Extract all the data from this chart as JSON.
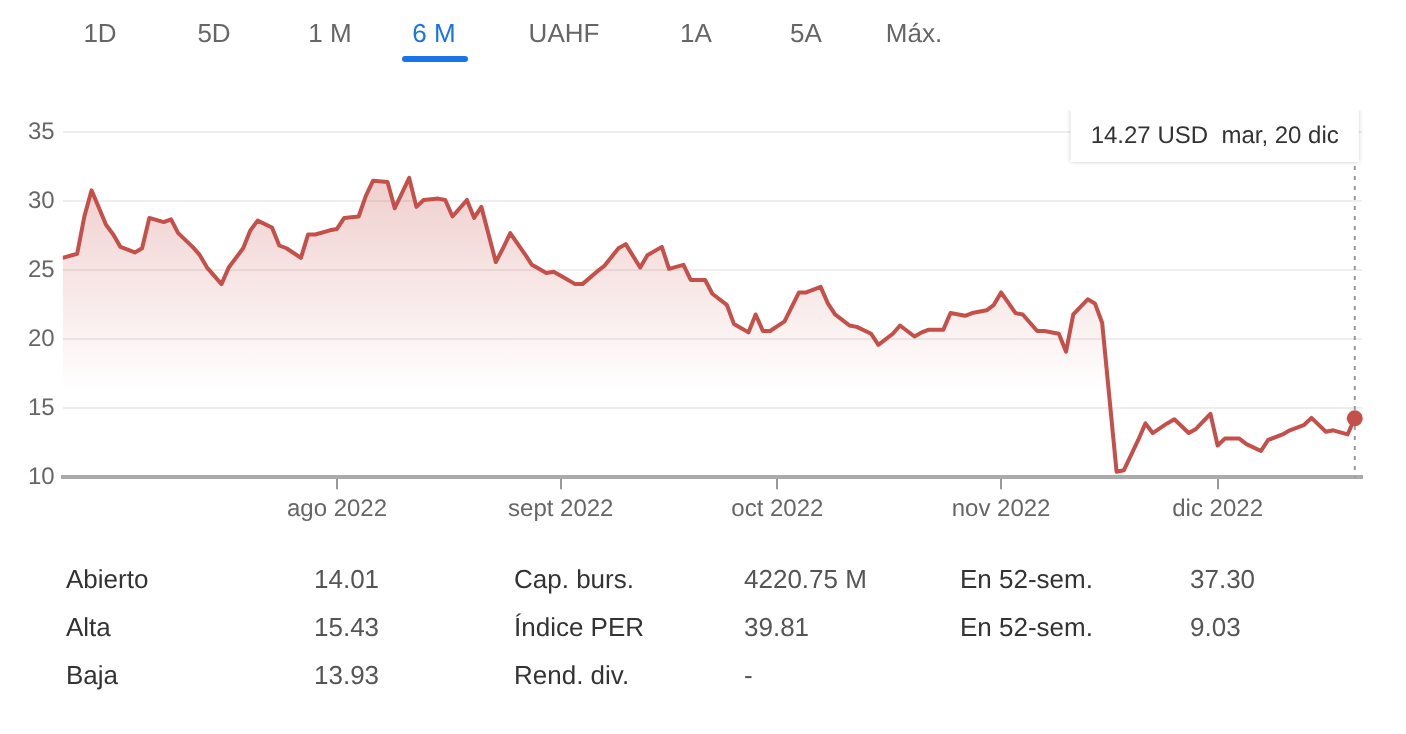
{
  "chart_data": {
    "type": "area",
    "x": [
      "2022-06-24",
      "2022-06-26",
      "2022-06-27",
      "2022-06-28",
      "2022-06-30",
      "2022-07-01",
      "2022-07-02",
      "2022-07-04",
      "2022-07-05",
      "2022-07-06",
      "2022-07-08",
      "2022-07-09",
      "2022-07-10",
      "2022-07-12",
      "2022-07-13",
      "2022-07-14",
      "2022-07-16",
      "2022-07-17",
      "2022-07-19",
      "2022-07-20",
      "2022-07-21",
      "2022-07-23",
      "2022-07-24",
      "2022-07-25",
      "2022-07-27",
      "2022-07-28",
      "2022-07-29",
      "2022-07-31",
      "2022-08-01",
      "2022-08-02",
      "2022-08-04",
      "2022-08-05",
      "2022-08-06",
      "2022-08-08",
      "2022-08-09",
      "2022-08-11",
      "2022-08-12",
      "2022-08-13",
      "2022-08-15",
      "2022-08-16",
      "2022-08-17",
      "2022-08-19",
      "2022-08-20",
      "2022-08-21",
      "2022-08-23",
      "2022-08-24",
      "2022-08-25",
      "2022-08-27",
      "2022-08-28",
      "2022-08-30",
      "2022-08-31",
      "2022-09-01",
      "2022-09-03",
      "2022-09-04",
      "2022-09-06",
      "2022-09-07",
      "2022-09-09",
      "2022-09-10",
      "2022-09-12",
      "2022-09-13",
      "2022-09-15",
      "2022-09-16",
      "2022-09-18",
      "2022-09-19",
      "2022-09-21",
      "2022-09-22",
      "2022-09-24",
      "2022-09-25",
      "2022-09-27",
      "2022-09-28",
      "2022-09-29",
      "2022-09-30",
      "2022-10-02",
      "2022-10-04",
      "2022-10-05",
      "2022-10-07",
      "2022-10-08",
      "2022-10-09",
      "2022-10-11",
      "2022-10-12",
      "2022-10-14",
      "2022-10-15",
      "2022-10-17",
      "2022-10-18",
      "2022-10-20",
      "2022-10-21",
      "2022-10-22",
      "2022-10-24",
      "2022-10-25",
      "2022-10-27",
      "2022-10-28",
      "2022-10-30",
      "2022-10-31",
      "2022-11-01",
      "2022-11-03",
      "2022-11-04",
      "2022-11-06",
      "2022-11-07",
      "2022-11-09",
      "2022-11-10",
      "2022-11-11",
      "2022-11-13",
      "2022-11-14",
      "2022-11-15",
      "2022-11-17",
      "2022-11-18",
      "2022-11-20",
      "2022-11-21",
      "2022-11-22",
      "2022-11-24",
      "2022-11-25",
      "2022-11-27",
      "2022-11-28",
      "2022-11-30",
      "2022-12-01",
      "2022-12-02",
      "2022-12-04",
      "2022-12-05",
      "2022-12-07",
      "2022-12-08",
      "2022-12-10",
      "2022-12-11",
      "2022-12-13",
      "2022-12-14",
      "2022-12-16",
      "2022-12-17",
      "2022-12-19",
      "2022-12-20"
    ],
    "values": [
      25.9,
      26.2,
      28.9,
      30.8,
      28.3,
      27.6,
      26.7,
      26.3,
      26.6,
      28.8,
      28.5,
      28.7,
      27.7,
      26.7,
      26.1,
      25.2,
      24.0,
      25.2,
      26.6,
      27.9,
      28.6,
      28.1,
      26.8,
      26.6,
      25.9,
      27.6,
      27.6,
      27.9,
      28.0,
      28.8,
      28.9,
      30.4,
      31.5,
      31.4,
      29.5,
      31.7,
      29.6,
      30.1,
      30.2,
      30.1,
      28.9,
      30.1,
      28.8,
      29.6,
      25.6,
      26.6,
      27.7,
      26.2,
      25.4,
      24.8,
      24.9,
      24.6,
      24.0,
      24.0,
      24.9,
      25.3,
      26.6,
      26.9,
      25.2,
      26.1,
      26.7,
      25.1,
      25.4,
      24.3,
      24.3,
      23.3,
      22.5,
      21.1,
      20.5,
      21.8,
      20.6,
      20.6,
      21.3,
      23.4,
      23.4,
      23.8,
      22.6,
      21.8,
      21.0,
      20.9,
      20.4,
      19.6,
      20.4,
      21.0,
      20.2,
      20.5,
      20.7,
      20.7,
      21.9,
      21.7,
      21.9,
      22.1,
      22.5,
      23.4,
      21.9,
      21.8,
      20.6,
      20.6,
      20.4,
      19.1,
      21.8,
      22.9,
      22.6,
      21.2,
      10.4,
      10.5,
      12.7,
      13.9,
      13.2,
      13.9,
      14.2,
      13.2,
      13.5,
      14.6,
      12.3,
      12.8,
      12.8,
      12.4,
      11.9,
      12.7,
      13.1,
      13.4,
      13.8,
      14.3,
      13.3,
      13.4,
      13.1,
      14.27
    ],
    "color": "#c5504a",
    "xlim": [
      "2022-06-24",
      "2022-12-21"
    ],
    "xticks": [
      {
        "value": "2022-08-01",
        "label": "ago 2022"
      },
      {
        "value": "2022-09-01",
        "label": "sept 2022"
      },
      {
        "value": "2022-10-01",
        "label": "oct 2022"
      },
      {
        "value": "2022-11-01",
        "label": "nov 2022"
      },
      {
        "value": "2022-12-01",
        "label": "dic 2022"
      }
    ],
    "ylim": [
      10,
      35
    ],
    "yticks": [
      10,
      15,
      20,
      25,
      30,
      35
    ],
    "grid": "y",
    "legend": false,
    "marker": "none",
    "line_style": "solid",
    "ref_lines": [
      {
        "axis": "x",
        "value": "2022-12-20",
        "line_style": "dotted",
        "color": "#999999"
      }
    ],
    "annotations": [
      "1D",
      "5D",
      "1 M",
      "6 M",
      "UAHF",
      "1A",
      "5A",
      "Máx.",
      "14.27 USD  mar, 20 dic",
      "Abierto",
      "14.01",
      "Cap. burs.",
      "4220.75 M",
      "En 52-sem.",
      "37.30",
      "Alta",
      "15.43",
      "Índice PER",
      "39.81",
      "En 52-sem.",
      "9.03",
      "Baja",
      "13.93",
      "Rend. div.",
      "-"
    ]
  }
}
